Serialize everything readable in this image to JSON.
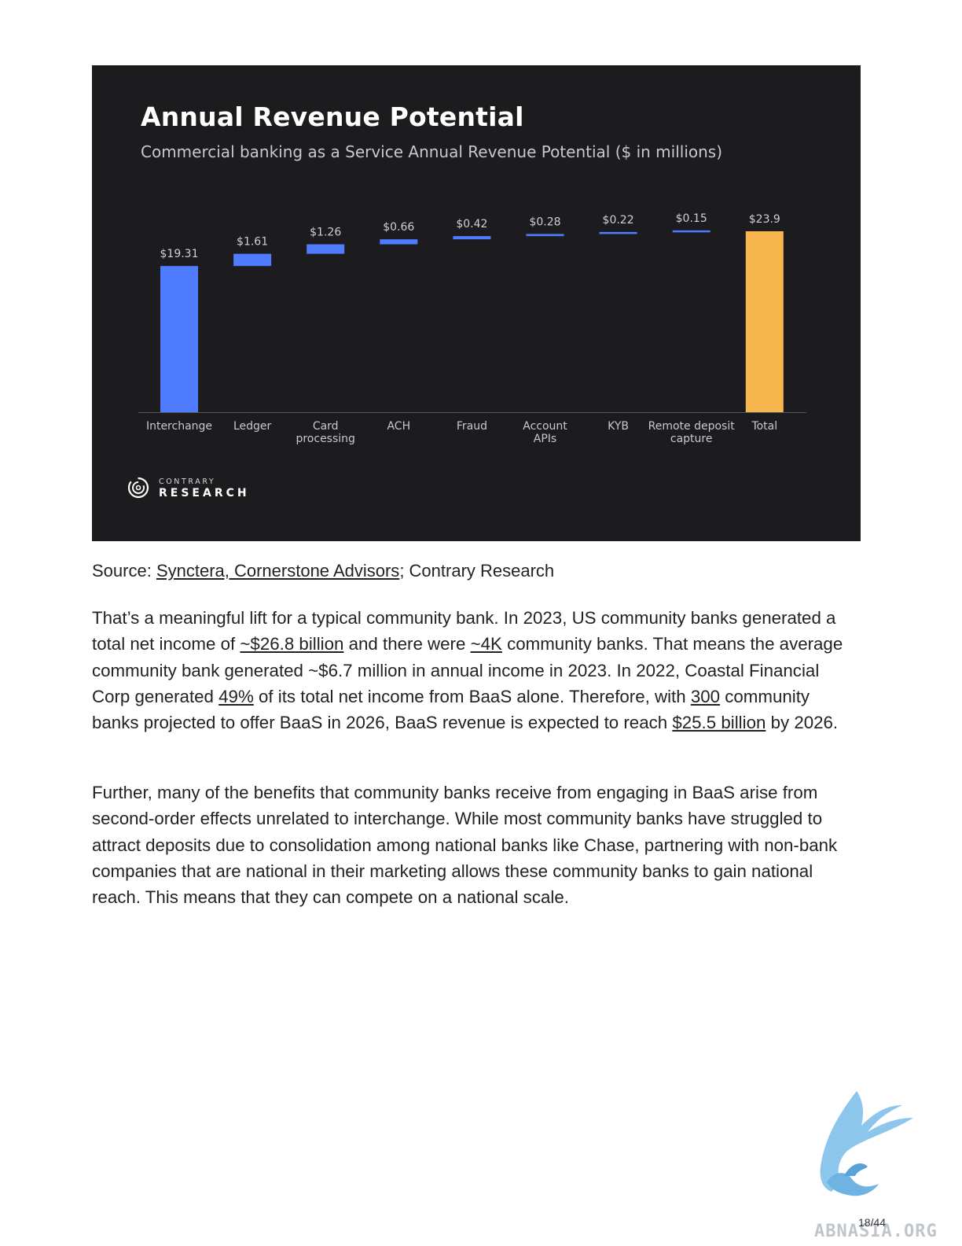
{
  "chart_data": {
    "type": "waterfall",
    "title": "Annual Revenue Potential",
    "subtitle": "Commercial banking as a Service Annual Revenue Potential ($ in millions)",
    "categories": [
      [
        "Interchange"
      ],
      [
        "Ledger"
      ],
      [
        "Card",
        "processing"
      ],
      [
        "ACH"
      ],
      [
        "Fraud"
      ],
      [
        "Account",
        "APIs"
      ],
      [
        "KYB"
      ],
      [
        "Remote deposit",
        "capture"
      ],
      [
        "Total"
      ]
    ],
    "values": [
      19.31,
      1.61,
      1.26,
      0.66,
      0.42,
      0.28,
      0.22,
      0.15,
      23.9
    ],
    "value_labels": [
      "$19.31",
      "$1.61",
      "$1.26",
      "$0.66",
      "$0.42",
      "$0.28",
      "$0.22",
      "$0.15",
      "$23.9"
    ],
    "ylim": [
      0,
      23.9
    ],
    "grid": false,
    "colors": {
      "increment": "#4f7bff",
      "total": "#f7b64e",
      "background": "#1c1c1f"
    }
  },
  "brand": {
    "top": "CONTRARY",
    "bottom": "RESEARCH"
  },
  "source": {
    "prefix": "Source: ",
    "link": "Synctera, Cornerstone Advisors",
    "suffix": "; Contrary Research"
  },
  "paragraph1": {
    "t1": "That’s a meaningful lift for a typical community bank. In 2023, US community banks generated a total net income of ",
    "l1": "~$26.8 billion",
    "t2": " and there were ",
    "l2": "~4K",
    "t3": " community banks. That means the average community bank generated ~$6.7 million in annual income in 2023. In 2022, Coastal Financial Corp generated ",
    "l3": "49%",
    "t4": " of its total net income from BaaS alone. Therefore, with ",
    "l4": "300",
    "t5": " community banks projected to offer BaaS in 2026, BaaS revenue is expected to reach ",
    "l5": "$25.5 billion",
    "t6": " by 2026."
  },
  "paragraph2": "Further, many of the benefits that community banks receive from engaging in BaaS arise from second-order effects unrelated to interchange. While most community banks have struggled to attract deposits due to consolidation among national banks like Chase, partnering with non-bank companies that are national in their marketing allows these community banks to gain national reach. This means that they can compete on a national scale.",
  "watermark": {
    "text": "ABNASIA.ORG",
    "icon": "griffin-logo-icon"
  },
  "page_number": "18/44"
}
